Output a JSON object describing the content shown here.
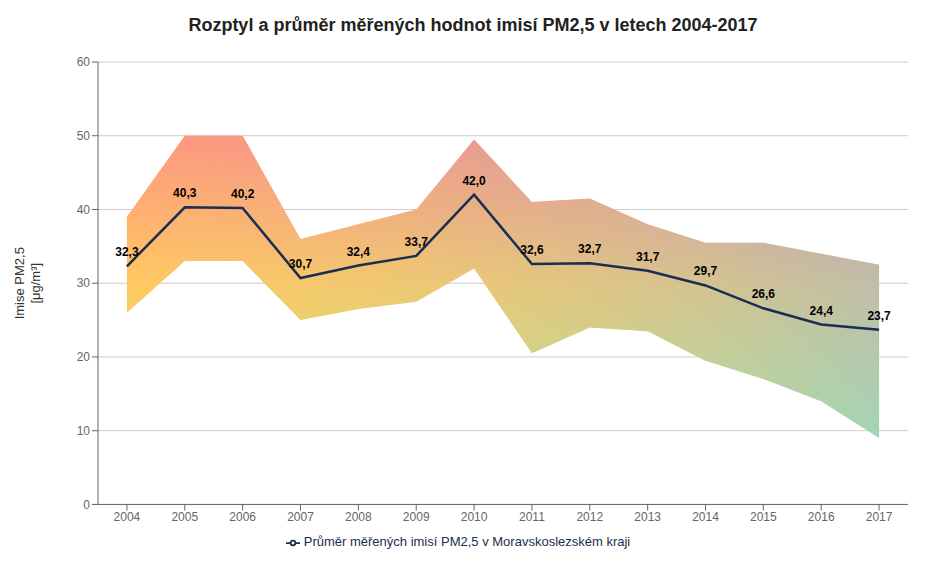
{
  "chart_data": {
    "type": "line",
    "title": "Rozptyl a průměr měřených hodnot imisí PM2,5 v letech 2004-2017",
    "y_label": "Imise PM2,5\n[μg/m³]",
    "x": [
      2004,
      2005,
      2006,
      2007,
      2008,
      2009,
      2010,
      2011,
      2012,
      2013,
      2014,
      2015,
      2016,
      2017
    ],
    "xlim": [
      2003.5,
      2017.5
    ],
    "xticks": [
      2004,
      2005,
      2006,
      2007,
      2008,
      2009,
      2010,
      2011,
      2012,
      2013,
      2014,
      2015,
      2016,
      2017
    ],
    "ylim": [
      0,
      60
    ],
    "yticks": [
      0,
      10,
      20,
      30,
      40,
      50,
      60
    ],
    "series": [
      {
        "name": "Průměr měřených imisí PM2,5 v Moravskoslezském kraji",
        "color": "#1a2e52",
        "values": [
          32.3,
          40.3,
          40.2,
          30.7,
          32.4,
          33.7,
          42.0,
          32.6,
          32.7,
          31.7,
          29.7,
          26.6,
          24.4,
          23.7
        ],
        "value_labels": [
          "32,3",
          "40,3",
          "40,2",
          "30,7",
          "32,4",
          "33,7",
          "42,0",
          "32,6",
          "32,7",
          "31,7",
          "29,7",
          "26,6",
          "24,4",
          "23,7"
        ]
      }
    ],
    "upper": [
      39.0,
      50.0,
      50.0,
      36.0,
      38.0,
      40.0,
      49.5,
      41.0,
      41.5,
      38.0,
      35.5,
      35.5,
      34.0,
      32.5
    ],
    "lower": [
      26.0,
      33.0,
      33.0,
      25.0,
      26.5,
      27.5,
      32.0,
      20.5,
      24.0,
      23.5,
      19.5,
      17.0,
      14.0,
      9.0
    ],
    "grid": true,
    "legend": "bottom",
    "data_labels": true
  }
}
